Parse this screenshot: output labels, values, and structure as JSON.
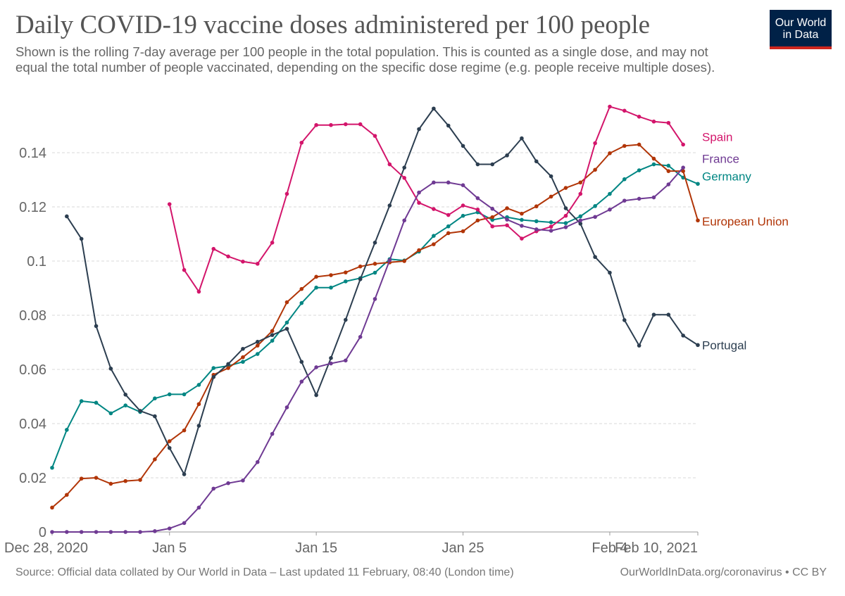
{
  "header": {
    "title": "Daily COVID-19 vaccine doses administered per 100 people",
    "subtitle": "Shown is the rolling 7-day average per 100 people in the total population. This is counted as a single dose, and may not equal the total number of people vaccinated, depending on the specific dose regime (e.g. people receive multiple doses).",
    "logo_line1": "Our World",
    "logo_line2": "in Data"
  },
  "footer": {
    "source": "Source: Official data collated by Our World in Data – Last updated 11 February, 08:40 (London time)",
    "credit": "OurWorldInData.org/coronavirus • CC BY"
  },
  "colors": {
    "Spain": "#d3156b",
    "France": "#6f3a93",
    "Germany": "#008683",
    "European Union": "#b13507",
    "Portugal": "#2c3e50",
    "grid": "#d9d9d9"
  },
  "chart_data": {
    "type": "line",
    "title": "Daily COVID-19 vaccine doses administered per 100 people",
    "xlabel": "",
    "ylabel": "",
    "x_start": "Dec 28, 2020",
    "x_end": "Feb 10, 2021",
    "xlim": [
      0,
      44
    ],
    "ylim": [
      0,
      0.155
    ],
    "grid": true,
    "yticks": [
      {
        "value": 0,
        "label": "0"
      },
      {
        "value": 0.02,
        "label": "0.02"
      },
      {
        "value": 0.04,
        "label": "0.04"
      },
      {
        "value": 0.06,
        "label": "0.06"
      },
      {
        "value": 0.08,
        "label": "0.08"
      },
      {
        "value": 0.1,
        "label": "0.1"
      },
      {
        "value": 0.12,
        "label": "0.12"
      },
      {
        "value": 0.14,
        "label": "0.14"
      }
    ],
    "xticks": [
      {
        "day": 0,
        "label": "Dec 28, 2020",
        "anchor": "start"
      },
      {
        "day": 8,
        "label": "Jan 5",
        "anchor": "middle"
      },
      {
        "day": 18,
        "label": "Jan 15",
        "anchor": "middle"
      },
      {
        "day": 28,
        "label": "Jan 25",
        "anchor": "middle"
      },
      {
        "day": 38,
        "label": "Feb 4",
        "anchor": "middle"
      },
      {
        "day": 44,
        "label": "Feb 10, 2021",
        "anchor": "end"
      }
    ],
    "series": [
      {
        "name": "Germany",
        "start_day": 0,
        "values": [
          0.0237,
          0.0377,
          0.0483,
          0.0477,
          0.0438,
          0.0467,
          0.0443,
          0.0493,
          0.0508,
          0.0508,
          0.0543,
          0.0605,
          0.0613,
          0.0628,
          0.0657,
          0.0706,
          0.0773,
          0.0845,
          0.0902,
          0.0902,
          0.0925,
          0.0937,
          0.0957,
          0.1007,
          0.1002,
          0.1035,
          0.1093,
          0.1128,
          0.1167,
          0.118,
          0.1152,
          0.1162,
          0.1152,
          0.1147,
          0.1143,
          0.114,
          0.1165,
          0.1203,
          0.1248,
          0.1302,
          0.1335,
          0.1357,
          0.1352,
          0.1308,
          0.1285
        ]
      },
      {
        "name": "European Union",
        "start_day": 0,
        "values": [
          0.009,
          0.0137,
          0.0197,
          0.02,
          0.0178,
          0.0188,
          0.0192,
          0.0268,
          0.0335,
          0.0375,
          0.0472,
          0.058,
          0.0605,
          0.0645,
          0.0688,
          0.0742,
          0.0848,
          0.0897,
          0.0942,
          0.0948,
          0.0958,
          0.098,
          0.099,
          0.0995,
          0.1,
          0.104,
          0.1062,
          0.1103,
          0.111,
          0.115,
          0.1162,
          0.1195,
          0.1175,
          0.1202,
          0.1238,
          0.127,
          0.129,
          0.1337,
          0.1398,
          0.1425,
          0.143,
          0.1378,
          0.1332,
          0.1332,
          0.115
        ]
      },
      {
        "name": "Portugal",
        "start_day": 1,
        "values": [
          0.1165,
          0.1082,
          0.076,
          0.0603,
          0.0507,
          0.0447,
          0.0427,
          0.031,
          0.0213,
          0.0392,
          0.0572,
          0.062,
          0.0676,
          0.0702,
          0.0727,
          0.075,
          0.0628,
          0.0505,
          0.0642,
          0.0783,
          0.0933,
          0.1068,
          0.1205,
          0.1345,
          0.1487,
          0.1563,
          0.15,
          0.1425,
          0.1357,
          0.1357,
          0.139,
          0.1453,
          0.1368,
          0.1313,
          0.1195,
          0.1138,
          0.1015,
          0.0957,
          0.0782,
          0.0688,
          0.0802,
          0.0802,
          0.0725,
          0.069
        ]
      },
      {
        "name": "Spain",
        "start_day": 8,
        "values": [
          0.121,
          0.0967,
          0.0887,
          0.1045,
          0.1017,
          0.0998,
          0.099,
          0.1068,
          0.1248,
          0.1437,
          0.1502,
          0.1502,
          0.1505,
          0.1505,
          0.1462,
          0.1357,
          0.1307,
          0.1215,
          0.1192,
          0.117,
          0.1205,
          0.119,
          0.1128,
          0.1132,
          0.1083,
          0.111,
          0.1127,
          0.1167,
          0.1248,
          0.1435,
          0.157,
          0.1555,
          0.1533,
          0.1515,
          0.151,
          0.143
        ]
      },
      {
        "name": "France",
        "start_day": 0,
        "values": [
          0.0,
          0.0,
          0.0,
          0.0,
          0.0,
          0.0,
          0.0,
          0.0003,
          0.0013,
          0.0033,
          0.009,
          0.016,
          0.018,
          0.019,
          0.0258,
          0.0362,
          0.046,
          0.0555,
          0.0608,
          0.0622,
          0.0633,
          0.072,
          0.086,
          0.1003,
          0.115,
          0.1253,
          0.129,
          0.129,
          0.128,
          0.1232,
          0.1193,
          0.1153,
          0.113,
          0.1117,
          0.1112,
          0.1125,
          0.115,
          0.1163,
          0.119,
          0.1223,
          0.123,
          0.1235,
          0.1283,
          0.1345
        ]
      }
    ],
    "end_labels": [
      {
        "name": "Spain",
        "text": "Spain",
        "y": 0.1458
      },
      {
        "name": "France",
        "text": "France",
        "y": 0.1378
      },
      {
        "name": "Germany",
        "text": "Germany",
        "y": 0.1313
      },
      {
        "name": "European Union",
        "text": "European Union",
        "y": 0.1147
      },
      {
        "name": "Portugal",
        "text": "Portugal",
        "y": 0.069
      }
    ]
  }
}
